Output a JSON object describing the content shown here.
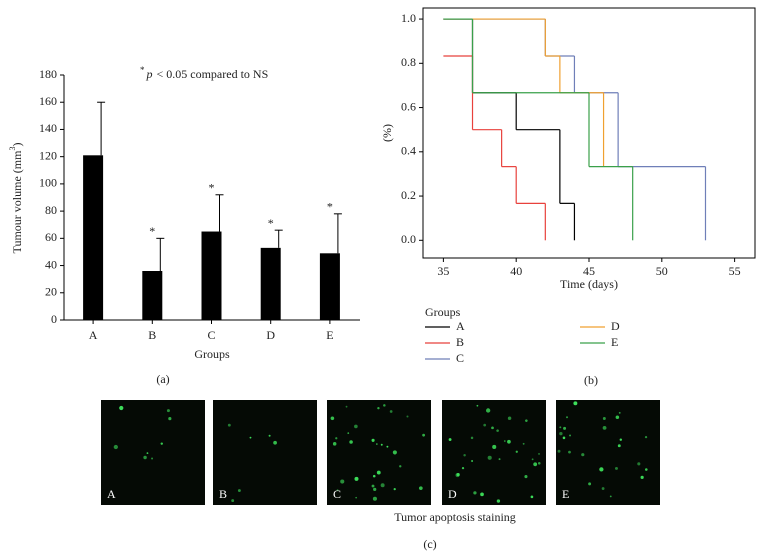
{
  "chart_data": [
    {
      "type": "bar",
      "panel": "(a)",
      "annotation": {
        "star": "*",
        "p": "p",
        "text": "< 0.05 compared to NS"
      },
      "ylabel": [
        "Tumour volume (mm",
        "3",
        ")"
      ],
      "xlabel": "Groups",
      "categories": [
        "A",
        "B",
        "C",
        "D",
        "E"
      ],
      "values": [
        121,
        36,
        65,
        53,
        49
      ],
      "errors": [
        39,
        24,
        27,
        13,
        29
      ],
      "markers": [
        null,
        "*",
        "*",
        "*",
        "*"
      ],
      "color": "#000000",
      "ylim": [
        0,
        180
      ],
      "yticks": [
        0,
        20,
        40,
        60,
        80,
        100,
        120,
        140,
        160,
        180
      ]
    },
    {
      "type": "step",
      "panel": "(b)",
      "xlabel": "Time (days)",
      "ylabel": "(%)",
      "xlim": [
        33.6,
        56.4
      ],
      "xticks": [
        35,
        40,
        45,
        50,
        55
      ],
      "ylim": [
        -0.08,
        1.05
      ],
      "yticks": [
        {
          "value": 0,
          "label": "0.0"
        },
        {
          "value": 0.2,
          "label": "0.2"
        },
        {
          "value": 0.4,
          "label": "0.4"
        },
        {
          "value": 0.6,
          "label": "0.6"
        },
        {
          "value": 0.8,
          "label": "0.8"
        },
        {
          "value": 1,
          "label": "1.0"
        }
      ],
      "legend_title": "Groups",
      "series": [
        {
          "name": "A",
          "color": "#000000",
          "x": [
            35,
            37,
            40,
            43,
            44
          ],
          "values": [
            1,
            0.667,
            0.5,
            0.167,
            0
          ]
        },
        {
          "name": "B",
          "color": "#e8413c",
          "x": [
            35,
            37,
            39,
            40,
            42
          ],
          "values": [
            0.833,
            0.5,
            0.333,
            0.167,
            0
          ]
        },
        {
          "name": "C",
          "color": "#6f7fb8",
          "x": [
            35,
            42,
            44,
            47,
            53
          ],
          "values": [
            1,
            0.833,
            0.667,
            0.333,
            0
          ]
        },
        {
          "name": "D",
          "color": "#f0a030",
          "x": [
            35,
            42,
            43,
            46
          ],
          "values": [
            1,
            0.833,
            0.667,
            0.333
          ]
        },
        {
          "name": "E",
          "color": "#3aa04a",
          "x": [
            35,
            37,
            45,
            48
          ],
          "values": [
            1,
            0.667,
            0.333,
            0
          ]
        }
      ]
    },
    {
      "type": "images",
      "panel": "(c)",
      "caption": "Tumor apoptosis staining",
      "labels": [
        "A",
        "B",
        "C",
        "D",
        "E"
      ]
    }
  ]
}
